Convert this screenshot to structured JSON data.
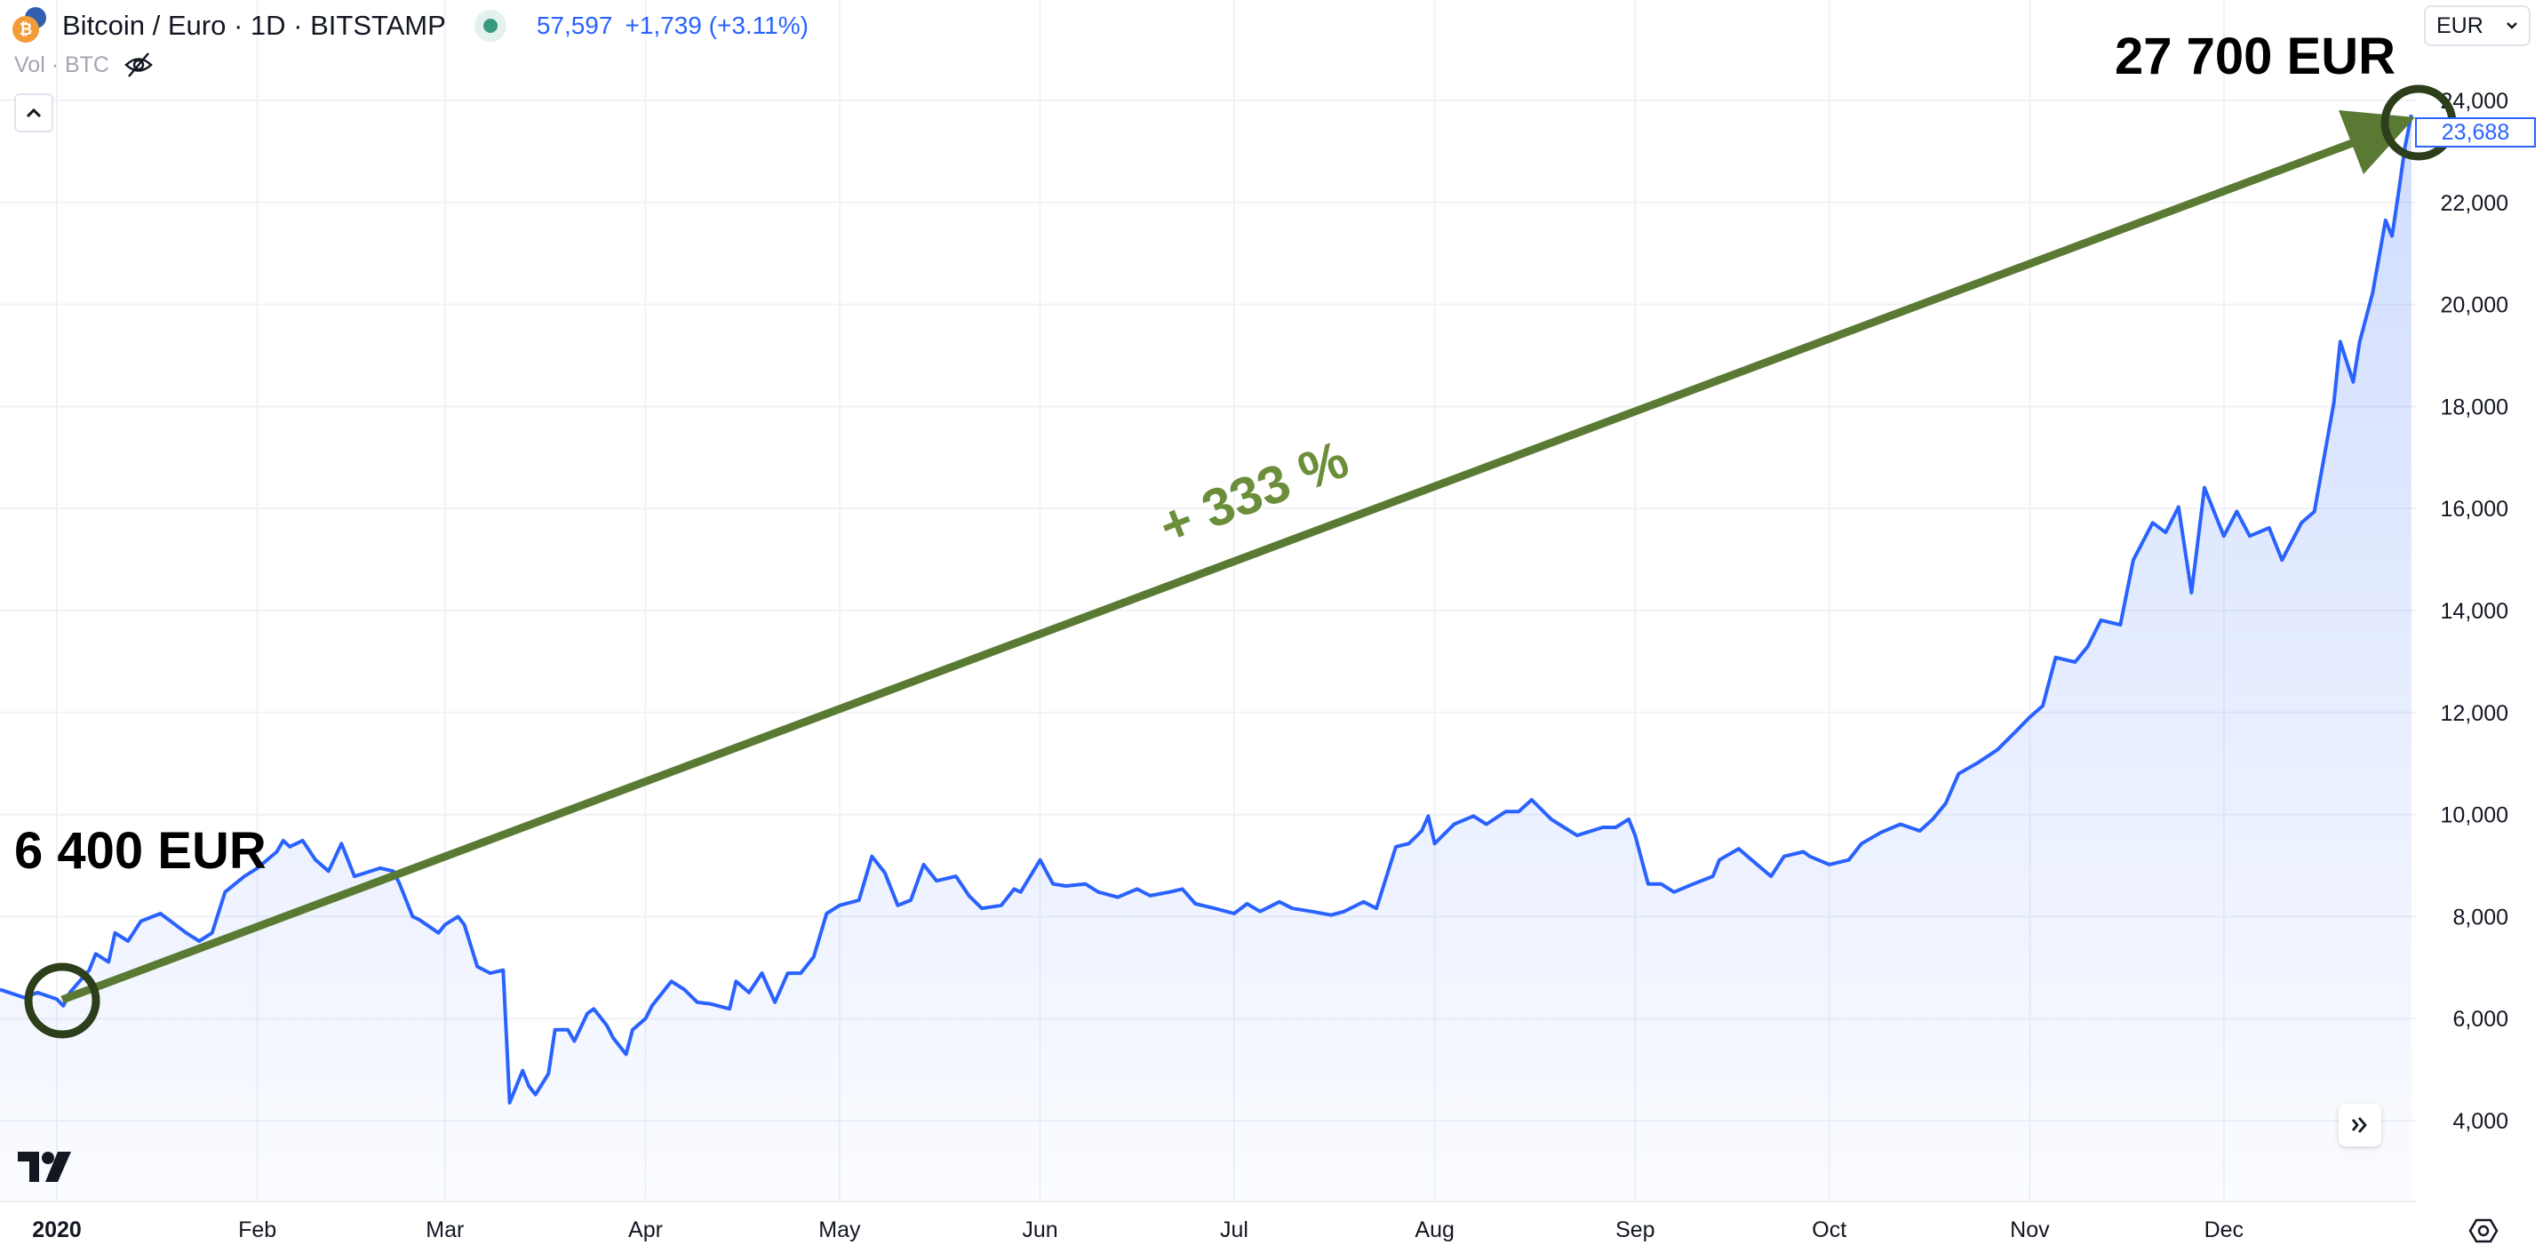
{
  "header": {
    "symbol_title": "Bitcoin / Euro · 1D · BITSTAMP",
    "price": "57,597",
    "change": "+1,739 (+3.11%)",
    "volume_label": "Vol · BTC",
    "collapse_icon": "chevron-up-icon",
    "hide_icon": "eye-off-icon"
  },
  "currency_select": {
    "value": "EUR"
  },
  "last_price_label": "23,688",
  "annotations": {
    "start_label": "6 400 EUR",
    "end_label": "27 700 EUR",
    "gain_label": "+ 333 %",
    "arrow_color": "#5a7a34",
    "circle_color": "#2d3e1a"
  },
  "colors": {
    "line": "#2962ff",
    "fill": "#2962ff",
    "accent": "#2962ff"
  },
  "chart_data": {
    "type": "area",
    "title": "",
    "xlabel": "",
    "ylabel": "",
    "ylim": [
      3000,
      25000
    ],
    "grid": true,
    "y_ticks": [
      "4,000",
      "6,000",
      "8,000",
      "10,000",
      "12,000",
      "14,000",
      "16,000",
      "18,000",
      "20,000",
      "22,000",
      "24,000"
    ],
    "y_tick_values": [
      4000,
      6000,
      8000,
      10000,
      12000,
      14000,
      16000,
      18000,
      20000,
      22000,
      24000
    ],
    "x_ticks": [
      {
        "label": "2020",
        "date": "2020-01-01",
        "bold": true
      },
      {
        "label": "Feb",
        "date": "2020-02-01"
      },
      {
        "label": "Mar",
        "date": "2020-03-01"
      },
      {
        "label": "Apr",
        "date": "2020-04-01"
      },
      {
        "label": "May",
        "date": "2020-05-01"
      },
      {
        "label": "Jun",
        "date": "2020-06-01"
      },
      {
        "label": "Jul",
        "date": "2020-07-01"
      },
      {
        "label": "Aug",
        "date": "2020-08-01"
      },
      {
        "label": "Sep",
        "date": "2020-09-01"
      },
      {
        "label": "Oct",
        "date": "2020-10-01"
      },
      {
        "label": "Nov",
        "date": "2020-11-01"
      },
      {
        "label": "Dec",
        "date": "2020-12-01"
      }
    ],
    "series": [
      {
        "points": [
          [
            "2019-12-23",
            6570
          ],
          [
            "2019-12-27",
            6410
          ],
          [
            "2019-12-29",
            6510
          ],
          [
            "2020-01-01",
            6380
          ],
          [
            "2020-01-02",
            6250
          ],
          [
            "2020-01-03",
            6510
          ],
          [
            "2020-01-06",
            6950
          ],
          [
            "2020-01-07",
            7270
          ],
          [
            "2020-01-09",
            7110
          ],
          [
            "2020-01-10",
            7680
          ],
          [
            "2020-01-12",
            7520
          ],
          [
            "2020-01-14",
            7910
          ],
          [
            "2020-01-17",
            8060
          ],
          [
            "2020-01-21",
            7680
          ],
          [
            "2020-01-23",
            7520
          ],
          [
            "2020-01-25",
            7680
          ],
          [
            "2020-01-27",
            8480
          ],
          [
            "2020-01-30",
            8790
          ],
          [
            "2020-02-01",
            8950
          ],
          [
            "2020-02-04",
            9270
          ],
          [
            "2020-02-05",
            9490
          ],
          [
            "2020-02-06",
            9370
          ],
          [
            "2020-02-08",
            9490
          ],
          [
            "2020-02-10",
            9110
          ],
          [
            "2020-02-12",
            8890
          ],
          [
            "2020-02-14",
            9430
          ],
          [
            "2020-02-16",
            8790
          ],
          [
            "2020-02-20",
            8950
          ],
          [
            "2020-02-22",
            8890
          ],
          [
            "2020-02-23",
            8640
          ],
          [
            "2020-02-25",
            8000
          ],
          [
            "2020-02-26",
            7940
          ],
          [
            "2020-02-29",
            7680
          ],
          [
            "2020-03-01",
            7840
          ],
          [
            "2020-03-03",
            8000
          ],
          [
            "2020-03-04",
            7840
          ],
          [
            "2020-03-06",
            7020
          ],
          [
            "2020-03-08",
            6890
          ],
          [
            "2020-03-10",
            6950
          ],
          [
            "2020-03-11",
            4350
          ],
          [
            "2020-03-13",
            4980
          ],
          [
            "2020-03-14",
            4670
          ],
          [
            "2020-03-15",
            4510
          ],
          [
            "2020-03-17",
            4920
          ],
          [
            "2020-03-18",
            5780
          ],
          [
            "2020-03-20",
            5780
          ],
          [
            "2020-03-21",
            5560
          ],
          [
            "2020-03-23",
            6100
          ],
          [
            "2020-03-24",
            6190
          ],
          [
            "2020-03-26",
            5870
          ],
          [
            "2020-03-27",
            5620
          ],
          [
            "2020-03-29",
            5300
          ],
          [
            "2020-03-30",
            5780
          ],
          [
            "2020-04-01",
            6000
          ],
          [
            "2020-04-02",
            6250
          ],
          [
            "2020-04-04",
            6570
          ],
          [
            "2020-04-05",
            6730
          ],
          [
            "2020-04-07",
            6570
          ],
          [
            "2020-04-09",
            6320
          ],
          [
            "2020-04-11",
            6290
          ],
          [
            "2020-04-14",
            6190
          ],
          [
            "2020-04-15",
            6730
          ],
          [
            "2020-04-17",
            6510
          ],
          [
            "2020-04-19",
            6890
          ],
          [
            "2020-04-21",
            6320
          ],
          [
            "2020-04-23",
            6890
          ],
          [
            "2020-04-25",
            6890
          ],
          [
            "2020-04-27",
            7210
          ],
          [
            "2020-04-29",
            8060
          ],
          [
            "2020-05-01",
            8220
          ],
          [
            "2020-05-04",
            8320
          ],
          [
            "2020-05-06",
            9180
          ],
          [
            "2020-05-08",
            8860
          ],
          [
            "2020-05-10",
            8220
          ],
          [
            "2020-05-12",
            8320
          ],
          [
            "2020-05-14",
            9020
          ],
          [
            "2020-05-16",
            8700
          ],
          [
            "2020-05-19",
            8790
          ],
          [
            "2020-05-21",
            8410
          ],
          [
            "2020-05-23",
            8160
          ],
          [
            "2020-05-26",
            8220
          ],
          [
            "2020-05-28",
            8540
          ],
          [
            "2020-05-29",
            8480
          ],
          [
            "2020-06-01",
            9110
          ],
          [
            "2020-06-03",
            8640
          ],
          [
            "2020-06-05",
            8600
          ],
          [
            "2020-06-08",
            8640
          ],
          [
            "2020-06-10",
            8480
          ],
          [
            "2020-06-13",
            8380
          ],
          [
            "2020-06-16",
            8540
          ],
          [
            "2020-06-18",
            8410
          ],
          [
            "2020-06-21",
            8480
          ],
          [
            "2020-06-23",
            8540
          ],
          [
            "2020-06-25",
            8250
          ],
          [
            "2020-06-28",
            8160
          ],
          [
            "2020-07-01",
            8060
          ],
          [
            "2020-07-03",
            8250
          ],
          [
            "2020-07-05",
            8100
          ],
          [
            "2020-07-08",
            8290
          ],
          [
            "2020-07-10",
            8160
          ],
          [
            "2020-07-13",
            8100
          ],
          [
            "2020-07-16",
            8030
          ],
          [
            "2020-07-18",
            8100
          ],
          [
            "2020-07-21",
            8290
          ],
          [
            "2020-07-23",
            8160
          ],
          [
            "2020-07-26",
            9370
          ],
          [
            "2020-07-28",
            9430
          ],
          [
            "2020-07-30",
            9680
          ],
          [
            "2020-07-31",
            9970
          ],
          [
            "2020-08-01",
            9430
          ],
          [
            "2020-08-04",
            9810
          ],
          [
            "2020-08-07",
            9970
          ],
          [
            "2020-08-09",
            9810
          ],
          [
            "2020-08-12",
            10060
          ],
          [
            "2020-08-14",
            10060
          ],
          [
            "2020-08-16",
            10290
          ],
          [
            "2020-08-19",
            9910
          ],
          [
            "2020-08-21",
            9750
          ],
          [
            "2020-08-23",
            9590
          ],
          [
            "2020-08-27",
            9750
          ],
          [
            "2020-08-29",
            9750
          ],
          [
            "2020-08-31",
            9910
          ],
          [
            "2020-09-01",
            9590
          ],
          [
            "2020-09-03",
            8640
          ],
          [
            "2020-09-05",
            8640
          ],
          [
            "2020-09-07",
            8480
          ],
          [
            "2020-09-10",
            8640
          ],
          [
            "2020-09-13",
            8790
          ],
          [
            "2020-09-14",
            9110
          ],
          [
            "2020-09-17",
            9330
          ],
          [
            "2020-09-19",
            9110
          ],
          [
            "2020-09-22",
            8790
          ],
          [
            "2020-09-24",
            9180
          ],
          [
            "2020-09-27",
            9270
          ],
          [
            "2020-09-28",
            9180
          ],
          [
            "2020-10-01",
            9020
          ],
          [
            "2020-10-04",
            9110
          ],
          [
            "2020-10-06",
            9430
          ],
          [
            "2020-10-09",
            9650
          ],
          [
            "2020-10-12",
            9810
          ],
          [
            "2020-10-15",
            9680
          ],
          [
            "2020-10-17",
            9910
          ],
          [
            "2020-10-19",
            10220
          ],
          [
            "2020-10-21",
            10800
          ],
          [
            "2020-10-24",
            11020
          ],
          [
            "2020-10-27",
            11270
          ],
          [
            "2020-10-30",
            11650
          ],
          [
            "2020-11-01",
            11910
          ],
          [
            "2020-11-03",
            12130
          ],
          [
            "2020-11-05",
            13080
          ],
          [
            "2020-11-08",
            12990
          ],
          [
            "2020-11-10",
            13300
          ],
          [
            "2020-11-12",
            13810
          ],
          [
            "2020-11-15",
            13720
          ],
          [
            "2020-11-17",
            14990
          ],
          [
            "2020-11-20",
            15720
          ],
          [
            "2020-11-22",
            15530
          ],
          [
            "2020-11-24",
            16030
          ],
          [
            "2020-11-26",
            14350
          ],
          [
            "2020-11-28",
            16410
          ],
          [
            "2020-12-01",
            15460
          ],
          [
            "2020-12-03",
            15940
          ],
          [
            "2020-12-05",
            15460
          ],
          [
            "2020-12-08",
            15620
          ],
          [
            "2020-12-10",
            14990
          ],
          [
            "2020-12-13",
            15720
          ],
          [
            "2020-12-15",
            15940
          ],
          [
            "2020-12-18",
            18070
          ],
          [
            "2020-12-19",
            19270
          ],
          [
            "2020-12-21",
            18480
          ],
          [
            "2020-12-22",
            19270
          ],
          [
            "2020-12-24",
            20220
          ],
          [
            "2020-12-26",
            21650
          ],
          [
            "2020-12-27",
            21340
          ],
          [
            "2020-12-28",
            22190
          ],
          [
            "2020-12-29",
            23080
          ],
          [
            "2020-12-30",
            23720
          ]
        ]
      }
    ]
  }
}
